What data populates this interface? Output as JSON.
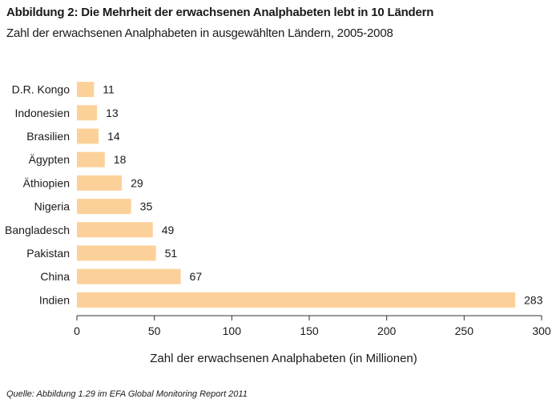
{
  "header": {
    "title": "Abbildung 2: Die Mehrheit der erwachsenen Analphabeten lebt in 10 Ländern",
    "subtitle": "Zahl der erwachsenen Analphabeten in ausgewählten Ländern, 2005-2008"
  },
  "footer": {
    "source": "Quelle: Abbildung 1.29 im EFA Global Monitoring Report 2011"
  },
  "chart_data": {
    "type": "bar",
    "orientation": "horizontal",
    "categories": [
      "D.R. Kongo",
      "Indonesien",
      "Brasilien",
      "Ägypten",
      "Äthiopien",
      "Nigeria",
      "Bangladesch",
      "Pakistan",
      "China",
      "Indien"
    ],
    "values": [
      11,
      13,
      14,
      18,
      29,
      35,
      49,
      51,
      67,
      283
    ],
    "data_labels": [
      "11",
      "13",
      "14",
      "18",
      "29",
      "35",
      "49",
      "51",
      "67",
      "283"
    ],
    "xlabel": "Zahl der erwachsenen Analphabeten (in Millionen)",
    "ylabel": "",
    "xlim": [
      0,
      300
    ],
    "xticks": [
      0,
      50,
      100,
      150,
      200,
      250,
      300
    ],
    "xtick_labels": [
      "0",
      "50",
      "100",
      "150",
      "200",
      "250",
      "300"
    ],
    "grid": false,
    "bar_color": "#fcd199"
  }
}
